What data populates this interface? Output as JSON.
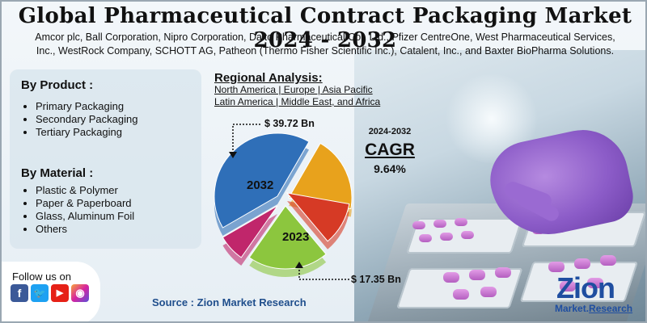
{
  "title": "Global Pharmaceutical Contract Packaging Market 2024 - 2032",
  "companies": [
    "Amcor plc, Ball Corporation, Nipro Corporation, Daito Pharmaceutical Co., Ltd., Pfizer CentreOne, West Pharmaceutical Services,",
    "Inc., WestRock Company, SCHOTT AG, Patheon (Thermo Fisher Scientific Inc.), Catalent, Inc., and Baxter BioPharma Solutions."
  ],
  "by_product": {
    "heading": "By Product :",
    "items": [
      "Primary Packaging",
      "Secondary Packaging",
      "Tertiary Packaging"
    ]
  },
  "by_material": {
    "heading": "By Material :",
    "items": [
      "Plastic & Polymer",
      "Paper & Paperboard",
      "Glass, Aluminum Foil",
      "Others"
    ]
  },
  "regional": {
    "heading": "Regional Analysis:",
    "line1": "North America | Europe | Asia Pacific",
    "line2": "Latin America | Middle East, and Africa"
  },
  "chart_data": {
    "type": "pie",
    "labels": [
      "2032",
      "2023"
    ],
    "values_text": [
      "$ 39.72 Bn",
      "$ 17.35 Bn"
    ],
    "values": [
      39.72,
      17.35
    ],
    "slice_colors": [
      "#2f6fb8",
      "#e8a21c",
      "#d63a25",
      "#8cc63e",
      "#c0266b"
    ]
  },
  "cagr": {
    "years": "2024-2032",
    "label": "CAGR",
    "value": "9.64%"
  },
  "follow": {
    "label": "Follow us on",
    "icons": [
      "facebook-icon",
      "twitter-icon",
      "youtube-icon",
      "instagram-icon"
    ]
  },
  "source": "Source : Zion Market Research",
  "logo": {
    "name": "Zion",
    "sub_left": "Market",
    "sub_right": "Research"
  }
}
